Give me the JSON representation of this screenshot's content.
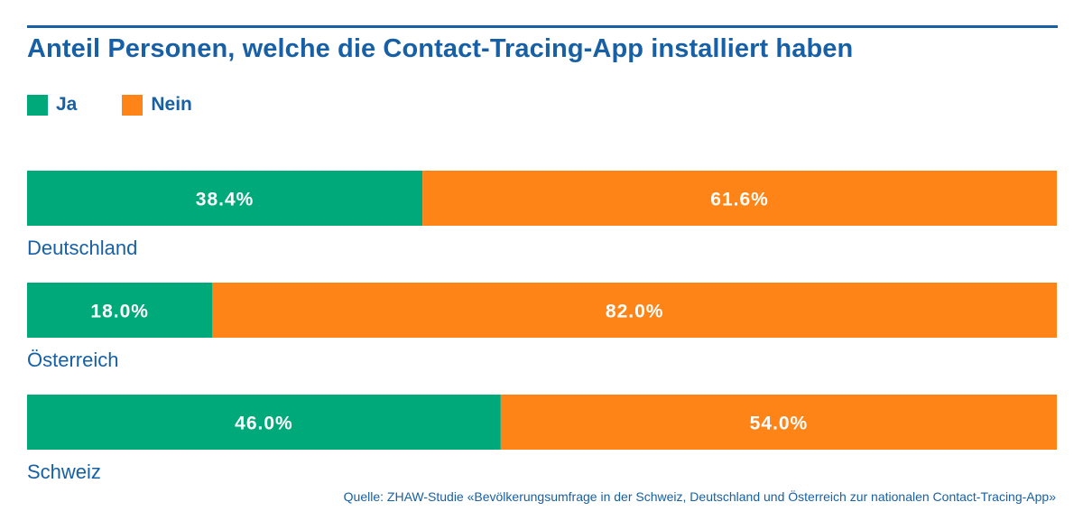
{
  "chart_data": {
    "type": "bar",
    "orientation": "horizontal",
    "stacked": true,
    "title": "Anteil Personen, welche die Contact-Tracing-App installiert haben",
    "xlim": [
      0,
      100
    ],
    "categories": [
      "Deutschland",
      "Österreich",
      "Schweiz"
    ],
    "series": [
      {
        "name": "Ja",
        "color": "#00a97a",
        "values": [
          38.4,
          18.0,
          46.0
        ],
        "labels": [
          "38.4%",
          "18.0%",
          "46.0%"
        ]
      },
      {
        "name": "Nein",
        "color": "#ff8417",
        "values": [
          61.6,
          82.0,
          54.0
        ],
        "labels": [
          "61.6%",
          "82.0%",
          "54.0%"
        ]
      }
    ],
    "legend": "top-left",
    "grid": false
  },
  "source": "Quelle: ZHAW-Studie «Bevölkerungsumfrage in der Schweiz, Deutschland und Österreich zur nationalen Contact-Tracing-App»",
  "colors": {
    "text": "#1760a5",
    "ja": "#00a97a",
    "nein": "#ff8417"
  }
}
